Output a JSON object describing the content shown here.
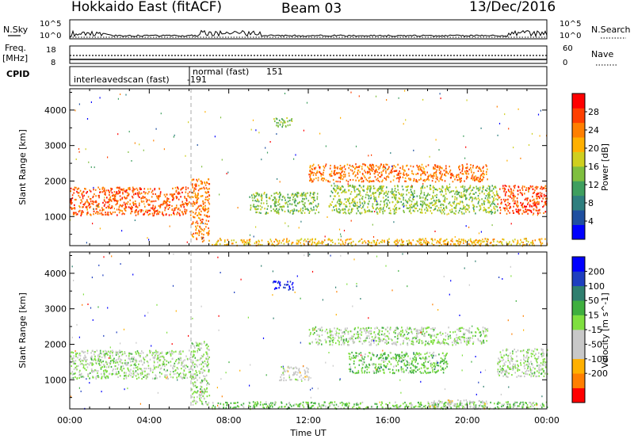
{
  "header": {
    "station": "Hokkaido East (fitACF)",
    "beam": "Beam 03",
    "date": "13/Dec/2016"
  },
  "params": {
    "nsky_label": "N.Sky",
    "nsearch_label": "N.Search",
    "freq_label_line1": "Freq.",
    "freq_label_line2": "[MHz]",
    "nave_label": "Nave",
    "cpid_label": "CPID",
    "nsky_ticks": [
      "10^5",
      "10^0"
    ],
    "nsearch_ticks": [
      "10^5",
      "10^0"
    ],
    "freq_ticks": [
      "18",
      "8"
    ],
    "nave_ticks": [
      "60",
      "0"
    ],
    "cpid_modes": [
      {
        "name": "interleavedscan (fast)",
        "id": "-191",
        "start_hour": 0
      },
      {
        "name": "normal (fast)",
        "id": "151",
        "start_hour": 6
      }
    ]
  },
  "chart_data": [
    {
      "type": "heatmap",
      "title": "",
      "panel": "power",
      "xlabel": "",
      "ylabel": "Slant Range [km]",
      "xlim": [
        0,
        24
      ],
      "ylim": [
        180,
        4600
      ],
      "x_ticks": [
        "00:00",
        "04:00",
        "08:00",
        "12:00",
        "16:00",
        "20:00",
        "00:00"
      ],
      "y_ticks": [
        1000,
        2000,
        3000,
        4000
      ],
      "colorbar": {
        "label": "Power [dB]",
        "range": [
          0,
          32
        ],
        "ticks": [
          4,
          8,
          12,
          16,
          20,
          24,
          28
        ],
        "colors": [
          "#0000ff",
          "#1f4fa0",
          "#2f7f7f",
          "#3f9f5f",
          "#7fbf3f",
          "#cfcf1f",
          "#ffb000",
          "#ff7f00",
          "#ff3f00",
          "#ff0000"
        ]
      },
      "regions": [
        {
          "t0": 0.0,
          "t1": 6.1,
          "r0": 1050,
          "r1": 1850,
          "level": 26
        },
        {
          "t0": 6.1,
          "t1": 7.0,
          "r0": 300,
          "r1": 2100,
          "level": 24
        },
        {
          "t0": 7.0,
          "t1": 24.0,
          "r0": 200,
          "r1": 400,
          "level": 20
        },
        {
          "t0": 9.0,
          "t1": 12.5,
          "r0": 1100,
          "r1": 1700,
          "level": 14
        },
        {
          "t0": 12.0,
          "t1": 21.0,
          "r0": 2000,
          "r1": 2500,
          "level": 25
        },
        {
          "t0": 13.0,
          "t1": 21.5,
          "r0": 1100,
          "r1": 1900,
          "level": 15
        },
        {
          "t0": 21.5,
          "t1": 24.0,
          "r0": 1100,
          "r1": 1900,
          "level": 27
        },
        {
          "t0": 10.2,
          "t1": 11.2,
          "r0": 3550,
          "r1": 3800,
          "level": 14
        }
      ]
    },
    {
      "type": "heatmap",
      "title": "",
      "panel": "velocity",
      "xlabel": "Time UT",
      "ylabel": "Slant Range [km]",
      "xlim": [
        0,
        24
      ],
      "ylim": [
        180,
        4600
      ],
      "x_ticks": [
        "00:00",
        "04:00",
        "08:00",
        "12:00",
        "16:00",
        "20:00",
        "00:00"
      ],
      "y_ticks": [
        1000,
        2000,
        3000,
        4000
      ],
      "colorbar": {
        "label": "Velocity [m s^-1]",
        "range": [
          -250,
          250
        ],
        "ticks": [
          200,
          100,
          50,
          15,
          -15,
          -50,
          -100,
          -200
        ],
        "colors": [
          "#ff0000",
          "#ff7f00",
          "#ffb000",
          "#c8c8c8",
          "#c8c8c8",
          "#7fdf3f",
          "#3faf3f",
          "#2f7f6f",
          "#1f3fbf",
          "#0000ff"
        ]
      },
      "regions": [
        {
          "t0": 0.0,
          "t1": 6.1,
          "r0": 1050,
          "r1": 1850,
          "level": 0
        },
        {
          "t0": 6.1,
          "t1": 7.0,
          "r0": 300,
          "r1": 2100,
          "level": 0
        },
        {
          "t0": 7.0,
          "t1": 24.0,
          "r0": 200,
          "r1": 400,
          "level": 40
        },
        {
          "t0": 12.0,
          "t1": 21.0,
          "r0": 2000,
          "r1": 2500,
          "level": 0
        },
        {
          "t0": 14.0,
          "t1": 19.0,
          "r0": 1200,
          "r1": 1800,
          "level": 45
        },
        {
          "t0": 18.0,
          "t1": 21.0,
          "r0": 200,
          "r1": 450,
          "level": -45
        },
        {
          "t0": 10.5,
          "t1": 12.0,
          "r0": 1000,
          "r1": 1400,
          "level": -45
        },
        {
          "t0": 21.5,
          "t1": 24.0,
          "r0": 1100,
          "r1": 1900,
          "level": 0
        },
        {
          "t0": 10.2,
          "t1": 11.2,
          "r0": 3550,
          "r1": 3800,
          "level": 220
        }
      ]
    }
  ]
}
